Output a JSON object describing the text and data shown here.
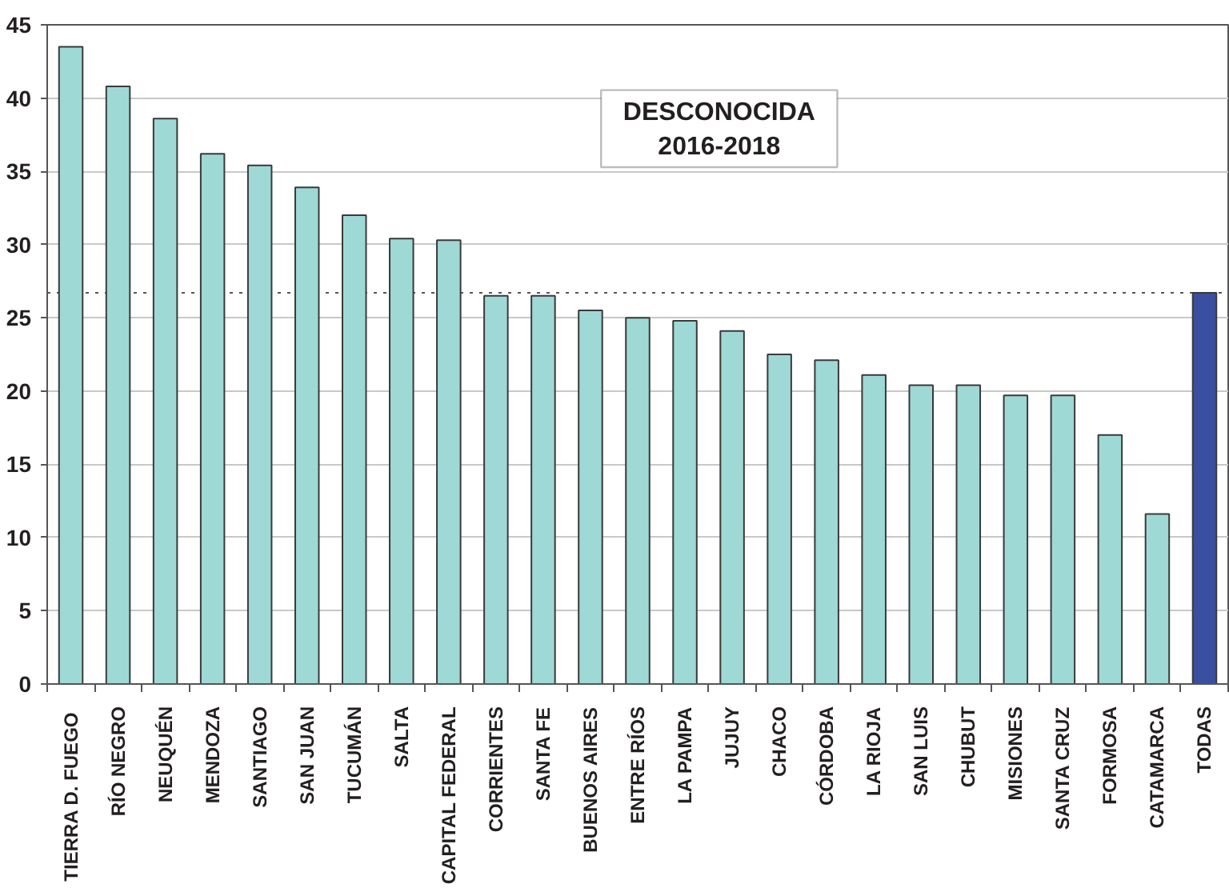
{
  "chart_data": {
    "type": "bar",
    "title": "DESCONOCIDA",
    "subtitle": "2016-2018",
    "categories": [
      "TIERRA  D. FUEGO",
      "RÍO NEGRO",
      "NEUQUÉN",
      "MENDOZA",
      "SANTIAGO",
      "SAN JUAN",
      "TUCUMÁN",
      "SALTA",
      "CAPITAL FEDERAL",
      "CORRIENTES",
      "SANTA FE",
      "BUENOS AIRES",
      "ENTRE RÍOS",
      "LA PAMPA",
      "JUJUY",
      "CHACO",
      "CÓRDOBA",
      "LA RIOJA",
      "SAN LUIS",
      "CHUBUT",
      "MISIONES",
      "SANTA CRUZ",
      "FORMOSA",
      "CATAMARCA",
      "TODAS"
    ],
    "values": [
      43.5,
      40.8,
      38.6,
      36.2,
      35.4,
      33.9,
      32.0,
      30.4,
      30.3,
      26.5,
      26.5,
      25.5,
      25.0,
      24.8,
      24.1,
      22.5,
      22.1,
      21.1,
      20.4,
      20.4,
      19.7,
      19.7,
      17.0,
      11.6,
      26.7
    ],
    "colors": [
      "#9fd9d5",
      "#9fd9d5",
      "#9fd9d5",
      "#9fd9d5",
      "#9fd9d5",
      "#9fd9d5",
      "#9fd9d5",
      "#9fd9d5",
      "#9fd9d5",
      "#9fd9d5",
      "#9fd9d5",
      "#9fd9d5",
      "#9fd9d5",
      "#9fd9d5",
      "#9fd9d5",
      "#9fd9d5",
      "#9fd9d5",
      "#9fd9d5",
      "#9fd9d5",
      "#9fd9d5",
      "#9fd9d5",
      "#9fd9d5",
      "#9fd9d5",
      "#9fd9d5",
      "#3a4f9f"
    ],
    "ylim": [
      0,
      45
    ],
    "yticks": [
      0,
      5,
      10,
      15,
      20,
      25,
      30,
      35,
      40,
      45
    ],
    "grid": "y",
    "ref_lines": [
      {
        "axis": "y",
        "value": 26.7,
        "color": "#555555",
        "line_style": "dotted"
      }
    ]
  }
}
